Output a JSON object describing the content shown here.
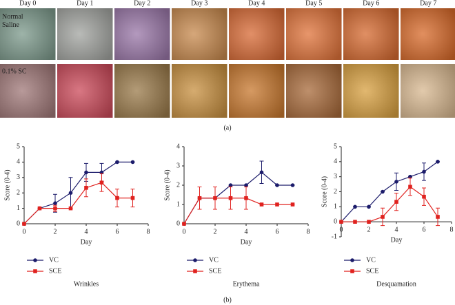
{
  "panel_a": {
    "days": [
      "Day 0",
      "Day 1",
      "Day 2",
      "Day 3",
      "Day 4",
      "Day 5",
      "Day 6",
      "Day 7"
    ],
    "rows": [
      "Normal Saline",
      "0.1% SC"
    ],
    "label": "(a)"
  },
  "panel_b": {
    "label": "(b)"
  },
  "chart_data": [
    {
      "type": "line",
      "title": "Wrinkles",
      "xlabel": "Day",
      "ylabel": "Score (0-4)",
      "x": [
        0,
        1,
        2,
        3,
        4,
        5,
        6,
        7
      ],
      "xlim": [
        0,
        8
      ],
      "xticks": [
        0,
        2,
        4,
        6,
        8
      ],
      "ylim": [
        0,
        5
      ],
      "yticks": [
        0,
        1,
        2,
        3,
        4,
        5
      ],
      "series": [
        {
          "name": "VC",
          "color": "#1c1c6b",
          "marker": "circle",
          "values": [
            0,
            1,
            1.33,
            2,
            3.33,
            3.33,
            4,
            4
          ],
          "errors": [
            0,
            0,
            0.58,
            1,
            0.58,
            0.58,
            0,
            0
          ]
        },
        {
          "name": "SCE",
          "color": "#e0221f",
          "marker": "square",
          "values": [
            0,
            1,
            1,
            1,
            2.33,
            2.67,
            1.67,
            1.67
          ],
          "errors": [
            0,
            0,
            0.2,
            0,
            0.58,
            0.58,
            0.58,
            0.58
          ]
        }
      ]
    },
    {
      "type": "line",
      "title": "Erythema",
      "xlabel": "Day",
      "ylabel": "Score (0-4)",
      "x": [
        0,
        1,
        2,
        3,
        4,
        5,
        6,
        7
      ],
      "xlim": [
        0,
        8
      ],
      "xticks": [
        0,
        2,
        4,
        6,
        8
      ],
      "ylim": [
        0,
        4
      ],
      "yticks": [
        0,
        1,
        2,
        3,
        4
      ],
      "series": [
        {
          "name": "VC",
          "color": "#1c1c6b",
          "marker": "circle",
          "values": [
            0,
            1.33,
            1.33,
            2,
            2,
            2.67,
            2,
            2
          ],
          "errors": [
            0,
            0.58,
            0.58,
            0,
            0,
            0.58,
            0,
            0
          ]
        },
        {
          "name": "SCE",
          "color": "#e0221f",
          "marker": "square",
          "values": [
            0,
            1.33,
            1.33,
            1.33,
            1.33,
            1,
            1,
            1
          ],
          "errors": [
            0,
            0.58,
            0.58,
            0.58,
            0.58,
            0,
            0,
            0
          ]
        }
      ]
    },
    {
      "type": "line",
      "title": "Desquamation",
      "xlabel": "Day",
      "ylabel": "Score (0-4)",
      "x": [
        0,
        1,
        2,
        3,
        4,
        5,
        6,
        7
      ],
      "xlim": [
        0,
        8
      ],
      "xticks": [
        0,
        2,
        4,
        6,
        8
      ],
      "ylim": [
        -1,
        5
      ],
      "yticks": [
        -1,
        0,
        1,
        2,
        3,
        4,
        5
      ],
      "series": [
        {
          "name": "VC",
          "color": "#1c1c6b",
          "marker": "circle",
          "values": [
            0,
            1,
            1,
            2,
            2.67,
            3,
            3.33,
            4
          ],
          "errors": [
            0,
            0,
            0,
            0,
            0.58,
            0,
            0.58,
            0
          ]
        },
        {
          "name": "SCE",
          "color": "#e0221f",
          "marker": "square",
          "values": [
            0,
            0,
            0,
            0.33,
            1.33,
            2.33,
            1.67,
            0.33
          ],
          "errors": [
            0,
            0,
            0,
            0.58,
            0.58,
            0.58,
            0.58,
            0.58
          ]
        }
      ]
    }
  ]
}
